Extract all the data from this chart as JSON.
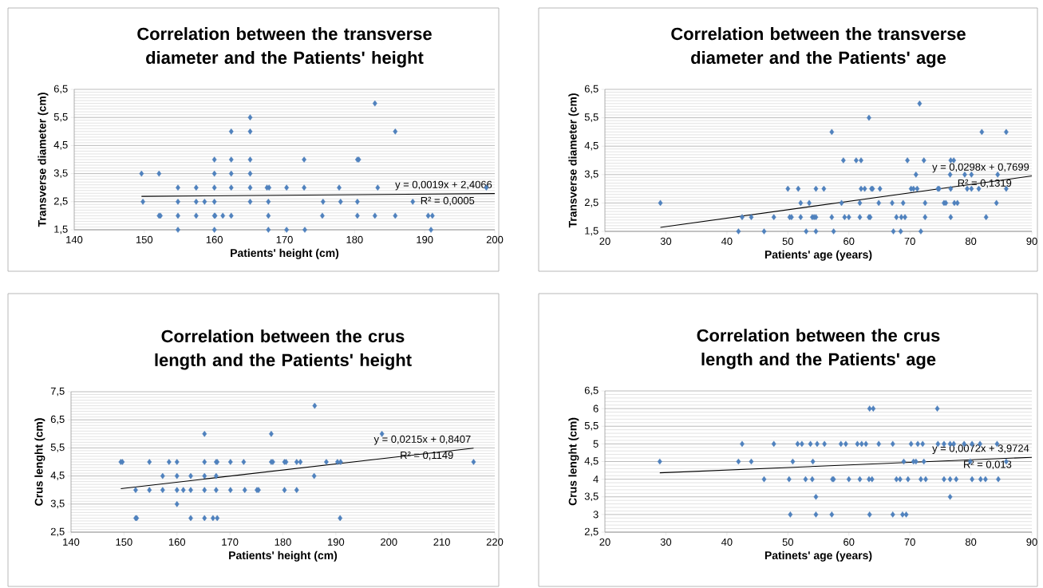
{
  "chart_data": [
    {
      "type": "scatter",
      "title": "Correlation between the transverse diameter and the Patients' height",
      "xlabel": "Patients' height (cm)",
      "ylabel": "Transverse diameter (cm)",
      "xlim": [
        140,
        200
      ],
      "ylim": [
        1.5,
        6.5
      ],
      "xticks": [
        140,
        150,
        160,
        170,
        180,
        190,
        200
      ],
      "yticks": [
        {
          "value": 1.5,
          "label": "1,5"
        },
        {
          "value": 2.5,
          "label": "2,5"
        },
        {
          "value": 3.5,
          "label": "3,5"
        },
        {
          "value": 4.5,
          "label": "4,5"
        },
        {
          "value": 5.5,
          "label": "5,5"
        },
        {
          "value": 6.5,
          "label": "6,5"
        }
      ],
      "grid": "y",
      "marker": "diamond",
      "series": [
        {
          "type": "scatter",
          "color": "#4f81bd",
          "x": [
            182.9,
            165.1,
            162.4,
            165.1,
            185.8,
            160,
            162.4,
            165.1,
            172.8,
            180.4,
            180.6,
            149.6,
            152.1,
            160,
            162.4,
            165.1,
            154.8,
            157.4,
            160,
            162.4,
            165.1,
            167.5,
            167.8,
            170.3,
            172.8,
            177.8,
            183.3,
            198.8,
            149.8,
            154.8,
            157.4,
            158.6,
            160,
            165.1,
            167.7,
            175.5,
            178,
            180.4,
            188.3,
            152.1,
            152.3,
            154.8,
            157.4,
            160,
            160.1,
            161.2,
            162.4,
            167.7,
            175.4,
            180.4,
            182.9,
            185.8,
            190.5,
            191.1,
            154.8,
            160,
            167.7,
            170.3,
            172.9,
            190.9
          ],
          "values": [
            6,
            5.5,
            5,
            5,
            5,
            4,
            4,
            4,
            4,
            4,
            4,
            3.5,
            3.5,
            3.5,
            3.5,
            3.5,
            3,
            3,
            3,
            3,
            3,
            3,
            3,
            3,
            3,
            3,
            3,
            3,
            2.5,
            2.5,
            2.5,
            2.5,
            2.5,
            2.5,
            2.5,
            2.5,
            2.5,
            2.5,
            2.5,
            2,
            2,
            2,
            2,
            2,
            2,
            2,
            2,
            2,
            2,
            2,
            2,
            2,
            2,
            2,
            1.5,
            1.5,
            1.5,
            1.5,
            1.5,
            1.5
          ]
        },
        {
          "type": "line",
          "color": "#000000",
          "marker": "none",
          "x": [
            149.6,
            200
          ],
          "values": [
            2.69,
            2.79
          ]
        }
      ],
      "annotations": [
        "y = 0,0019x + 2,4066",
        "R² = 0,0005"
      ]
    },
    {
      "type": "scatter",
      "title": "Correlation between the transverse diameter and the Patients' age",
      "xlabel": "Patients' age (years)",
      "ylabel": "Transverse diameter (cm)",
      "xlim": [
        20,
        90
      ],
      "ylim": [
        1.5,
        6.5
      ],
      "xticks": [
        20,
        30,
        40,
        50,
        60,
        70,
        80,
        90
      ],
      "yticks": [
        {
          "value": 1.5,
          "label": "1,5"
        },
        {
          "value": 2.5,
          "label": "2,5"
        },
        {
          "value": 3.5,
          "label": "3,5"
        },
        {
          "value": 4.5,
          "label": "4,5"
        },
        {
          "value": 5.5,
          "label": "5,5"
        },
        {
          "value": 6.5,
          "label": "6,5"
        }
      ],
      "grid": "y",
      "marker": "diamond",
      "series": [
        {
          "type": "scatter",
          "color": "#4f81bd",
          "x": [
            71.6,
            63.3,
            57.2,
            81.8,
            85.8,
            59.1,
            61.2,
            62.0,
            69.6,
            72.3,
            76.7,
            77.2,
            71.0,
            76.6,
            79.0,
            80.1,
            84.4,
            50.0,
            51.7,
            54.6,
            55.9,
            62.0,
            62.6,
            63.7,
            63.9,
            65.1,
            70.2,
            70.6,
            71.2,
            74.6,
            74.8,
            76.7,
            79.4,
            80.1,
            81.3,
            85.8,
            29.1,
            52.1,
            53.5,
            58.8,
            61.8,
            64.9,
            67.1,
            68.9,
            72.5,
            75.6,
            75.9,
            77.3,
            77.8,
            84.2,
            42.5,
            44.0,
            47.7,
            50.3,
            50.6,
            52.1,
            54.0,
            54.3,
            54.6,
            57.2,
            59.3,
            60.0,
            61.8,
            63.3,
            63.5,
            67.8,
            68.6,
            69.2,
            72.5,
            76.7,
            82.5,
            41.9,
            46.1,
            53.0,
            54.6,
            57.5,
            67.3,
            68.5,
            71.8
          ],
          "values": [
            6,
            5.5,
            5,
            5,
            5,
            4,
            4,
            4,
            4,
            4,
            4,
            4,
            3.5,
            3.5,
            3.5,
            3.5,
            3.5,
            3,
            3,
            3,
            3,
            3,
            3,
            3,
            3,
            3,
            3,
            3,
            3,
            3,
            3,
            3,
            3,
            3,
            3,
            3,
            2.5,
            2.5,
            2.5,
            2.5,
            2.5,
            2.5,
            2.5,
            2.5,
            2.5,
            2.5,
            2.5,
            2.5,
            2.5,
            2.5,
            2,
            2,
            2,
            2,
            2,
            2,
            2,
            2,
            2,
            2,
            2,
            2,
            2,
            2,
            2,
            2,
            2,
            2,
            2,
            2,
            2,
            1.5,
            1.5,
            1.5,
            1.5,
            1.5,
            1.5,
            1.5,
            1.5
          ]
        },
        {
          "type": "line",
          "color": "#000000",
          "marker": "none",
          "x": [
            29.1,
            90
          ],
          "values": [
            1.64,
            3.45
          ]
        }
      ],
      "annotations": [
        "y = 0,0298x + 0,7699",
        "R² = 0,1319"
      ]
    },
    {
      "type": "scatter",
      "title": "Correlation between the crus length and the Patients' height",
      "xlabel": "Patients' height (cm)",
      "ylabel": "Crus lenght (cm)",
      "xlim": [
        140,
        220
      ],
      "ylim": [
        2.5,
        7.5
      ],
      "xticks": [
        140,
        150,
        160,
        170,
        180,
        190,
        200,
        210,
        220
      ],
      "yticks": [
        {
          "value": 2.5,
          "label": "2,5"
        },
        {
          "value": 3.5,
          "label": "3,5"
        },
        {
          "value": 4.5,
          "label": "4,5"
        },
        {
          "value": 5.5,
          "label": "5,5"
        },
        {
          "value": 6.5,
          "label": "6,5"
        },
        {
          "value": 7.5,
          "label": "7,5"
        }
      ],
      "grid": "y",
      "marker": "diamond",
      "series": [
        {
          "type": "scatter",
          "color": "#4f81bd",
          "x": [
            186.0,
            165.2,
            177.8,
            198.7,
            149.4,
            149.7,
            154.8,
            158.5,
            160.0,
            165.2,
            167.4,
            167.6,
            170.1,
            172.6,
            177.8,
            178.1,
            180.3,
            180.6,
            182.6,
            183.3,
            188.2,
            190.3,
            190.9,
            216.0,
            157.3,
            160.0,
            162.6,
            165.2,
            167.4,
            185.9,
            152.2,
            154.8,
            157.3,
            160.0,
            161.2,
            162.6,
            165.2,
            167.4,
            170.1,
            172.8,
            175.1,
            175.4,
            180.3,
            182.6,
            160.0,
            152.2,
            152.4,
            162.6,
            165.2,
            166.8,
            167.6,
            190.8
          ],
          "values": [
            7,
            6,
            6,
            6,
            5,
            5,
            5,
            5,
            5,
            5,
            5,
            5,
            5,
            5,
            5,
            5,
            5,
            5,
            5,
            5,
            5,
            5,
            5,
            5,
            4.5,
            4.5,
            4.5,
            4.5,
            4.5,
            4.5,
            4,
            4,
            4,
            4,
            4,
            4,
            4,
            4,
            4,
            4,
            4,
            4,
            4,
            4,
            3.5,
            3,
            3,
            3,
            3,
            3,
            3,
            3
          ]
        },
        {
          "type": "line",
          "color": "#000000",
          "marker": "none",
          "x": [
            149.4,
            216
          ],
          "values": [
            4.05,
            5.49
          ]
        }
      ],
      "annotations": [
        "y = 0,0215x + 0,8407",
        "R² = 0,1149"
      ]
    },
    {
      "type": "scatter",
      "title": "Correlation between the crus length and the Patients' age",
      "xlabel": "Patinets' age (years)",
      "ylabel": "Crus lenght (cm)",
      "xlim": [
        20,
        90
      ],
      "ylim": [
        2.5,
        6.5
      ],
      "xticks": [
        20,
        30,
        40,
        50,
        60,
        70,
        80,
        90
      ],
      "yticks": [
        {
          "value": 2.5,
          "label": "2,5"
        },
        3,
        {
          "value": 3.5,
          "label": "3,5"
        },
        4,
        {
          "value": 4.5,
          "label": "4,5"
        },
        5,
        {
          "value": 5.5,
          "label": "5,5"
        },
        6,
        {
          "value": 6.5,
          "label": "6,5"
        }
      ],
      "grid": "y",
      "marker": "diamond",
      "series": [
        {
          "type": "scatter",
          "color": "#4f81bd",
          "x": [
            63.4,
            64.0,
            74.5,
            42.5,
            47.7,
            51.6,
            52.3,
            53.7,
            54.8,
            56.0,
            58.7,
            59.5,
            61.4,
            62.1,
            62.8,
            64.9,
            67.2,
            70.2,
            71.3,
            72.1,
            74.6,
            75.6,
            76.6,
            77.2,
            78.9,
            80.2,
            81.5,
            84.3,
            29.0,
            41.9,
            44.0,
            50.8,
            54.1,
            69.0,
            70.6,
            71.0,
            72.3,
            79.9,
            85.8,
            46.1,
            50.2,
            52.9,
            54.0,
            57.3,
            57.5,
            60.0,
            61.8,
            63.3,
            63.8,
            67.8,
            68.4,
            69.7,
            71.8,
            72.6,
            75.6,
            76.6,
            77.6,
            80.2,
            81.6,
            82.4,
            84.5,
            54.6,
            76.6,
            50.4,
            54.6,
            57.2,
            63.4,
            67.2,
            68.8,
            69.4
          ],
          "values": [
            6,
            6,
            6,
            5,
            5,
            5,
            5,
            5,
            5,
            5,
            5,
            5,
            5,
            5,
            5,
            5,
            5,
            5,
            5,
            5,
            5,
            5,
            5,
            5,
            5,
            5,
            5,
            5,
            4.5,
            4.5,
            4.5,
            4.5,
            4.5,
            4.5,
            4.5,
            4.5,
            4.5,
            4.5,
            4.5,
            4,
            4,
            4,
            4,
            4,
            4,
            4,
            4,
            4,
            4,
            4,
            4,
            4,
            4,
            4,
            4,
            4,
            4,
            4,
            4,
            4,
            4,
            3.5,
            3.5,
            3,
            3,
            3,
            3,
            3,
            3,
            3
          ]
        },
        {
          "type": "line",
          "color": "#000000",
          "marker": "none",
          "x": [
            29,
            90
          ],
          "values": [
            4.18,
            4.62
          ]
        }
      ],
      "annotations": [
        "y = 0,0072x + 3,9724",
        "R² = 0,013"
      ]
    }
  ]
}
